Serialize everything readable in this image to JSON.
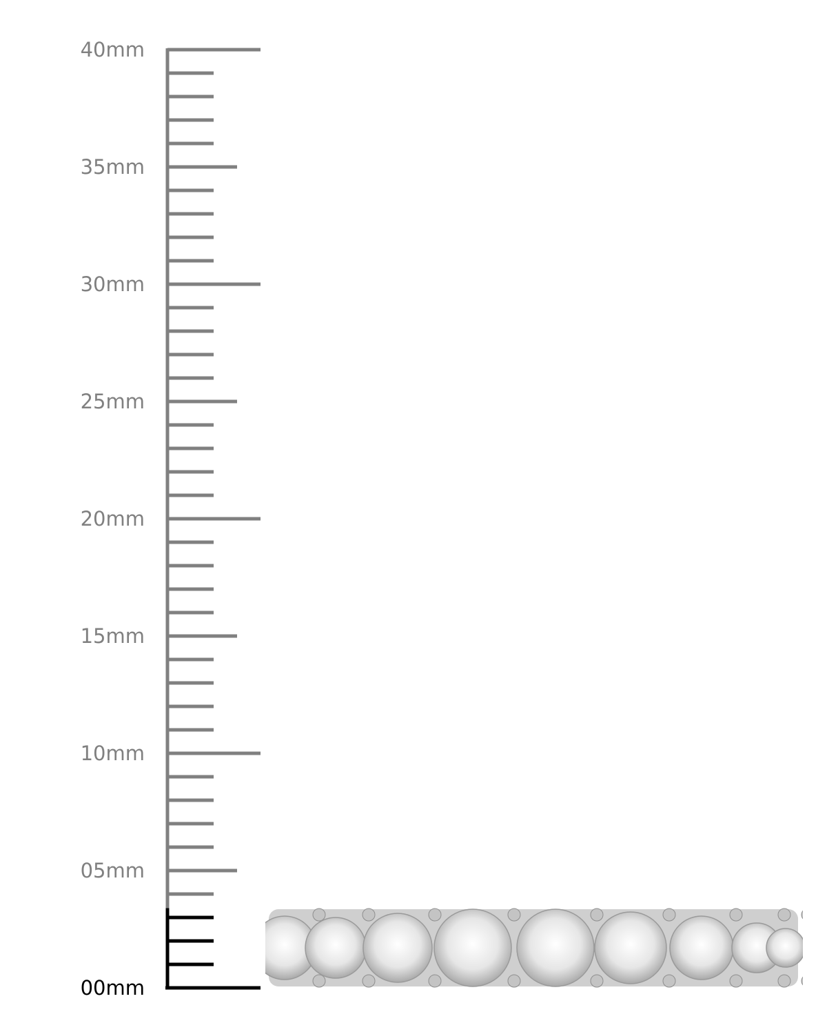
{
  "ruler": {
    "unit": "mm",
    "min": 0,
    "max": 40,
    "minor_step": 1,
    "highlight_to": 3.4,
    "labels": [
      {
        "value": 40,
        "text": "40mm"
      },
      {
        "value": 35,
        "text": "35mm"
      },
      {
        "value": 30,
        "text": "30mm"
      },
      {
        "value": 25,
        "text": "25mm"
      },
      {
        "value": 20,
        "text": "20mm"
      },
      {
        "value": 15,
        "text": "15mm"
      },
      {
        "value": 10,
        "text": "10mm"
      },
      {
        "value": 5,
        "text": "05mm"
      },
      {
        "value": 0,
        "text": "00mm"
      }
    ],
    "colors": {
      "scale": "#808080",
      "highlight": "#000000"
    }
  },
  "product": {
    "image": "diamond-eternity-band-side-view",
    "stone_count_visible": 9
  }
}
